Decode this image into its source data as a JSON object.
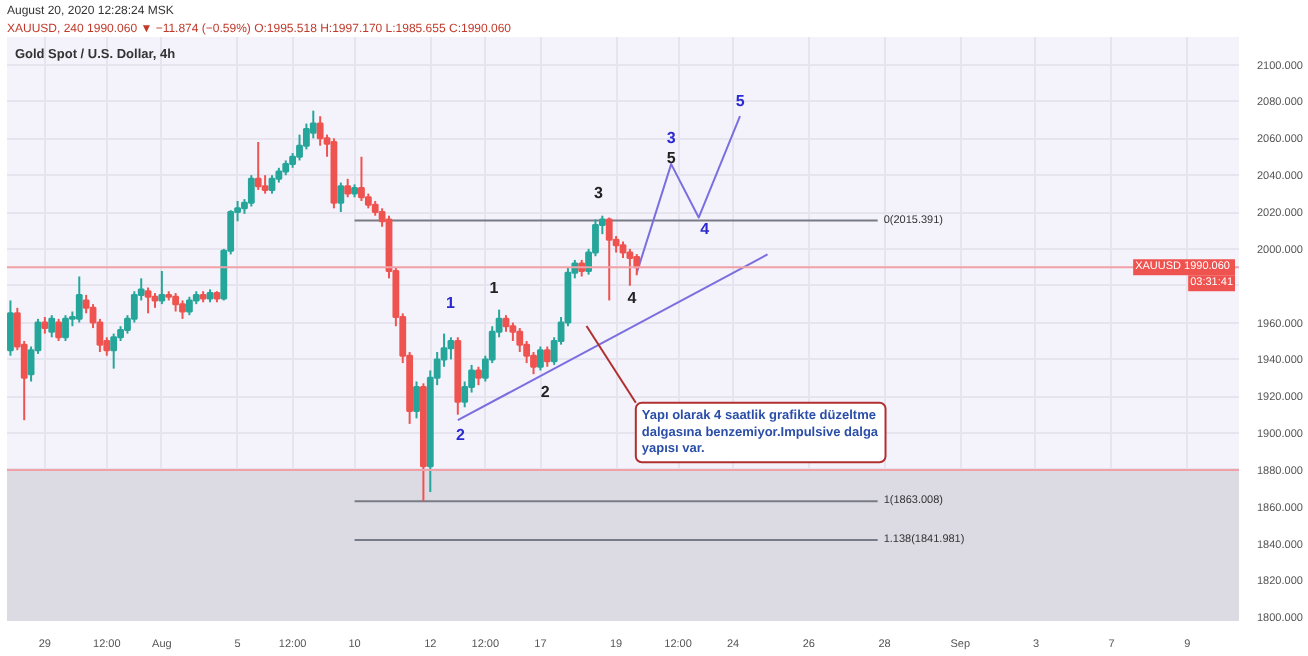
{
  "chart_data": {
    "type": "candlestick",
    "title": "Gold Spot / U.S. Dollar, 4h",
    "subtitle": "XAUUSD, 240  1990.060 ▼ −11.874 (−0.59%)  O:1995.518  H:1997.170  L:1985.655  C:1990.060",
    "categories": [
      null,
      null,
      null,
      null,
      null,
      "29",
      null,
      null,
      null,
      null,
      null,
      null,
      null,
      null,
      "12:00",
      null,
      null,
      null,
      null,
      null,
      null,
      null,
      "Aug",
      null,
      null,
      null,
      null,
      null,
      null,
      null,
      null,
      null,
      null,
      "5",
      null,
      null,
      null,
      null,
      null,
      null,
      null,
      "12:00",
      null,
      null,
      null,
      null,
      null,
      null,
      null,
      null,
      "10",
      null,
      null,
      null,
      null,
      null,
      null,
      null,
      null,
      null,
      null,
      "12",
      null,
      null,
      null,
      null,
      null,
      null,
      null,
      "12:00",
      null,
      null,
      null,
      null,
      null,
      null,
      null,
      "17",
      null,
      null,
      null,
      null,
      null,
      null,
      null,
      null,
      null,
      null,
      "19",
      null,
      null,
      null,
      null,
      null,
      null,
      null,
      null,
      "12:00",
      null,
      null,
      null,
      null,
      null,
      null,
      null,
      "24",
      null,
      null,
      null,
      null,
      null,
      null,
      null,
      null,
      null,
      null,
      "26",
      null,
      null,
      null,
      null,
      null,
      null,
      null,
      null,
      null,
      null,
      "28",
      null,
      null,
      null,
      null,
      null,
      null,
      null,
      null,
      null,
      null,
      "Sep",
      null,
      null,
      null,
      null,
      null,
      null,
      null,
      null,
      null,
      null,
      "3",
      null,
      null,
      null,
      null,
      null,
      null,
      null,
      null,
      null,
      null,
      "7",
      null,
      null,
      null,
      null,
      null,
      null,
      null,
      null,
      null,
      null,
      "9",
      null,
      null,
      null,
      null,
      null,
      null,
      null
    ],
    "ohlc": [
      [
        1945,
        1972,
        1942,
        1965
      ],
      [
        1965,
        1968,
        1945,
        1947
      ],
      [
        1948,
        1950,
        1907,
        1930
      ],
      [
        1932,
        1947,
        1928,
        1945
      ],
      [
        1945,
        1962,
        1943,
        1960
      ],
      [
        1960,
        1963,
        1954,
        1957
      ],
      [
        1955,
        1964,
        1952,
        1962
      ],
      [
        1960,
        1962,
        1950,
        1952
      ],
      [
        1952,
        1964,
        1950,
        1962
      ],
      [
        1962,
        1966,
        1958,
        1963
      ],
      [
        1962,
        1985,
        1960,
        1975
      ],
      [
        1972,
        1975,
        1965,
        1968
      ],
      [
        1968,
        1970,
        1957,
        1960
      ],
      [
        1960,
        1962,
        1944,
        1948
      ],
      [
        1950,
        1952,
        1942,
        1945
      ],
      [
        1945,
        1954,
        1935,
        1952
      ],
      [
        1952,
        1958,
        1950,
        1956
      ],
      [
        1956,
        1964,
        1954,
        1962
      ],
      [
        1962,
        1977,
        1960,
        1975
      ],
      [
        1975,
        1984,
        1972,
        1978
      ],
      [
        1977,
        1979,
        1965,
        1974
      ],
      [
        1974,
        1976,
        1968,
        1972
      ],
      [
        1972,
        1988,
        1970,
        1975
      ],
      [
        1975,
        1977,
        1972,
        1974
      ],
      [
        1974,
        1976,
        1966,
        1970
      ],
      [
        1970,
        1972,
        1962,
        1966
      ],
      [
        1966,
        1974,
        1964,
        1972
      ],
      [
        1972,
        1977,
        1970,
        1975
      ],
      [
        1975,
        1977,
        1971,
        1973
      ],
      [
        1973,
        1978,
        1971,
        1976
      ],
      [
        1976,
        1977,
        1971,
        1973
      ],
      [
        1973,
        2000,
        1972,
        1999
      ],
      [
        1999,
        2021,
        1997,
        2020
      ],
      [
        2020,
        2026,
        2015,
        2022
      ],
      [
        2022,
        2027,
        2019,
        2025
      ],
      [
        2025,
        2040,
        2023,
        2038
      ],
      [
        2038,
        2058,
        2032,
        2034
      ],
      [
        2034,
        2040,
        2030,
        2032
      ],
      [
        2032,
        2040,
        2030,
        2038
      ],
      [
        2038,
        2044,
        2036,
        2042
      ],
      [
        2042,
        2048,
        2040,
        2046
      ],
      [
        2046,
        2052,
        2044,
        2050
      ],
      [
        2050,
        2062,
        2048,
        2056
      ],
      [
        2056,
        2068,
        2054,
        2065
      ],
      [
        2063,
        2075,
        2060,
        2068
      ],
      [
        2068,
        2072,
        2056,
        2060
      ],
      [
        2060,
        2062,
        2050,
        2057
      ],
      [
        2058,
        2060,
        2022,
        2025
      ],
      [
        2025,
        2036,
        2020,
        2034
      ],
      [
        2034,
        2038,
        2028,
        2030
      ],
      [
        2030,
        2035,
        2028,
        2033
      ],
      [
        2033,
        2050,
        2026,
        2028
      ],
      [
        2028,
        2030,
        2022,
        2024
      ],
      [
        2024,
        2026,
        2018,
        2020
      ],
      [
        2020,
        2022,
        2012,
        2015
      ],
      [
        2016,
        2018,
        1984,
        1988
      ],
      [
        1988,
        1990,
        1958,
        1963
      ],
      [
        1963,
        1965,
        1938,
        1942
      ],
      [
        1942,
        1944,
        1905,
        1912
      ],
      [
        1912,
        1928,
        1908,
        1925
      ],
      [
        1925,
        1927,
        1863,
        1882
      ],
      [
        1882,
        1934,
        1868,
        1930
      ],
      [
        1930,
        1944,
        1926,
        1940
      ],
      [
        1940,
        1954,
        1936,
        1946
      ],
      [
        1946,
        1952,
        1940,
        1950
      ],
      [
        1950,
        1952,
        1910,
        1917
      ],
      [
        1917,
        1928,
        1914,
        1925
      ],
      [
        1925,
        1937,
        1922,
        1934
      ],
      [
        1934,
        1936,
        1926,
        1930
      ],
      [
        1930,
        1942,
        1928,
        1940
      ],
      [
        1940,
        1958,
        1938,
        1955
      ],
      [
        1955,
        1967,
        1952,
        1962
      ],
      [
        1962,
        1964,
        1955,
        1958
      ],
      [
        1958,
        1960,
        1950,
        1955
      ],
      [
        1955,
        1957,
        1944,
        1948
      ],
      [
        1948,
        1950,
        1938,
        1942
      ],
      [
        1942,
        1944,
        1932,
        1936
      ],
      [
        1936,
        1947,
        1934,
        1945
      ],
      [
        1945,
        1947,
        1936,
        1939
      ],
      [
        1939,
        1952,
        1937,
        1950
      ],
      [
        1950,
        1963,
        1948,
        1960
      ],
      [
        1960,
        1990,
        1958,
        1987
      ],
      [
        1987,
        1994,
        1984,
        1992
      ],
      [
        1992,
        1994,
        1985,
        1988
      ],
      [
        1988,
        2000,
        1986,
        1998
      ],
      [
        1998,
        2016,
        1996,
        2013
      ],
      [
        2013,
        2018,
        2008,
        2016
      ],
      [
        2016,
        2017,
        1972,
        2005
      ],
      [
        2005,
        2007,
        1998,
        2002
      ],
      [
        2002,
        2004,
        1995,
        1998
      ],
      [
        1998,
        2000,
        1980,
        1995
      ],
      [
        1995.518,
        1997.17,
        1985.655,
        1990.06
      ],
      null,
      null,
      null,
      null,
      null,
      null,
      null,
      null,
      null,
      null,
      null,
      null,
      null,
      null,
      null,
      null,
      null,
      null,
      null,
      null,
      null,
      null,
      null,
      null,
      null,
      null,
      null,
      null,
      null,
      null,
      null,
      null,
      null,
      null,
      null,
      null,
      null,
      null,
      null,
      null,
      null,
      null,
      null,
      null,
      null,
      null,
      null,
      null,
      null,
      null,
      null,
      null,
      null,
      null,
      null,
      null,
      null,
      null,
      null,
      null,
      null,
      null,
      null,
      null,
      null,
      null,
      null,
      null,
      null,
      null,
      null,
      null,
      null,
      null,
      null,
      null,
      null,
      null,
      null,
      null,
      null,
      null,
      null,
      null,
      null,
      null,
      null
    ],
    "colors": [
      "#26a69a",
      "#ef5350",
      "#ef5350",
      "#26a69a",
      "#26a69a",
      "#ef5350",
      "#26a69a",
      "#ef5350",
      "#26a69a",
      "#26a69a",
      "#26a69a",
      "#ef5350",
      "#ef5350",
      "#ef5350",
      "#ef5350",
      "#26a69a",
      "#26a69a",
      "#26a69a",
      "#26a69a",
      "#26a69a",
      "#ef5350",
      "#ef5350",
      "#26a69a",
      "#ef5350",
      "#ef5350",
      "#ef5350",
      "#26a69a",
      "#26a69a",
      "#ef5350",
      "#26a69a",
      "#ef5350",
      "#26a69a",
      "#26a69a",
      "#26a69a",
      "#26a69a",
      "#26a69a",
      "#ef5350",
      "#ef5350",
      "#26a69a",
      "#26a69a",
      "#26a69a",
      "#26a69a",
      "#26a69a",
      "#26a69a",
      "#26a69a",
      "#ef5350",
      "#ef5350",
      "#ef5350",
      "#26a69a",
      "#ef5350",
      "#26a69a",
      "#ef5350",
      "#ef5350",
      "#ef5350",
      "#ef5350",
      "#ef5350",
      "#ef5350",
      "#ef5350",
      "#ef5350",
      "#26a69a",
      "#ef5350",
      "#26a69a",
      "#26a69a",
      "#26a69a",
      "#26a69a",
      "#ef5350",
      "#26a69a",
      "#26a69a",
      "#ef5350",
      "#26a69a",
      "#26a69a",
      "#26a69a",
      "#ef5350",
      "#ef5350",
      "#ef5350",
      "#ef5350",
      "#ef5350",
      "#26a69a",
      "#ef5350",
      "#26a69a",
      "#26a69a",
      "#26a69a",
      "#26a69a",
      "#ef5350",
      "#26a69a",
      "#26a69a",
      "#26a69a",
      "#ef5350",
      "#ef5350",
      "#ef5350",
      "#ef5350",
      "#ef5350",
      null,
      null,
      null,
      null,
      null,
      null,
      null,
      null,
      null,
      null,
      null,
      null,
      null,
      null,
      null,
      null,
      null,
      null,
      null,
      null,
      null,
      null,
      null,
      null,
      null,
      null,
      null,
      null,
      null,
      null,
      null,
      null,
      null,
      null,
      null,
      null,
      null,
      null,
      null,
      null,
      null,
      null,
      null,
      null,
      null,
      null,
      null,
      null,
      null,
      null,
      null,
      null,
      null,
      null,
      null,
      null,
      null,
      null,
      null,
      null,
      null,
      null,
      null,
      null,
      null,
      null,
      null,
      null,
      null,
      null,
      null,
      null,
      null,
      null,
      null,
      null,
      null,
      null,
      null,
      null,
      null,
      null,
      null,
      null,
      null,
      null,
      null
    ],
    "series": [
      {
        "type": "line",
        "name": "0(2015.391)",
        "color": "#787b86",
        "values": [
          null,
          null,
          null,
          null,
          null,
          null,
          null,
          null,
          null,
          null,
          null,
          null,
          null,
          null,
          null,
          null,
          null,
          null,
          null,
          null,
          null,
          null,
          null,
          null,
          null,
          null,
          null,
          null,
          null,
          null,
          null,
          null,
          null,
          null,
          null,
          null,
          null,
          null,
          null,
          null,
          null,
          null,
          null,
          null,
          null,
          null,
          null,
          null,
          null,
          null,
          2015.391,
          null,
          null,
          null,
          null,
          null,
          null,
          null,
          null,
          null,
          null,
          null,
          null,
          null,
          null,
          null,
          null,
          null,
          null,
          null,
          null,
          null,
          null,
          null,
          null,
          null,
          null,
          null,
          null,
          null,
          null,
          null,
          null,
          null,
          null,
          null,
          null,
          null,
          null,
          null,
          null,
          null,
          null,
          null,
          null,
          null,
          null,
          null,
          null,
          null,
          null,
          null,
          null,
          null,
          null,
          null,
          null,
          null,
          null,
          null,
          null,
          null,
          null,
          null,
          null,
          null,
          null,
          null,
          null,
          null,
          null,
          null,
          null,
          null,
          null,
          null,
          2015.391,
          null,
          null,
          null,
          null,
          null,
          null,
          null,
          null,
          null,
          null,
          null,
          null,
          null,
          null,
          null,
          null,
          null,
          null,
          null,
          null,
          null,
          null,
          null,
          null,
          null,
          null,
          null,
          null,
          null,
          null,
          null,
          null,
          null,
          null,
          null,
          null,
          null,
          null,
          null,
          null,
          null,
          null,
          null,
          null,
          null,
          null,
          null,
          null,
          null,
          null,
          null,
          null
        ]
      },
      {
        "type": "line",
        "name": "1(1863.008)",
        "color": "#787b86",
        "values": [
          null,
          null,
          null,
          null,
          null,
          null,
          null,
          null,
          null,
          null,
          null,
          null,
          null,
          null,
          null,
          null,
          null,
          null,
          null,
          null,
          null,
          null,
          null,
          null,
          null,
          null,
          null,
          null,
          null,
          null,
          null,
          null,
          null,
          null,
          null,
          null,
          null,
          null,
          null,
          null,
          null,
          null,
          null,
          null,
          null,
          null,
          null,
          null,
          null,
          null,
          1863.008,
          null,
          null,
          null,
          null,
          null,
          null,
          null,
          null,
          null,
          null,
          null,
          null,
          null,
          null,
          null,
          null,
          null,
          null,
          null,
          null,
          null,
          null,
          null,
          null,
          null,
          null,
          null,
          null,
          null,
          null,
          null,
          null,
          null,
          null,
          null,
          null,
          null,
          null,
          null,
          null,
          null,
          null,
          null,
          null,
          null,
          null,
          null,
          null,
          null,
          null,
          null,
          null,
          null,
          null,
          null,
          null,
          null,
          null,
          null,
          null,
          null,
          null,
          null,
          null,
          null,
          null,
          null,
          null,
          null,
          null,
          null,
          null,
          null,
          null,
          null,
          1863.008,
          null,
          null,
          null,
          null,
          null,
          null,
          null,
          null,
          null,
          null,
          null,
          null,
          null,
          null,
          null,
          null,
          null,
          null,
          null,
          null,
          null,
          null,
          null,
          null,
          null,
          null,
          null,
          null,
          null,
          null,
          null,
          null,
          null,
          null,
          null,
          null,
          null,
          null,
          null,
          null,
          null,
          null,
          null,
          null,
          null,
          null,
          null,
          null,
          null,
          null,
          null,
          null
        ]
      },
      {
        "type": "line",
        "name": "1.138(1841.981)",
        "color": "#787b86",
        "values": [
          null,
          null,
          null,
          null,
          null,
          null,
          null,
          null,
          null,
          null,
          null,
          null,
          null,
          null,
          null,
          null,
          null,
          null,
          null,
          null,
          null,
          null,
          null,
          null,
          null,
          null,
          null,
          null,
          null,
          null,
          null,
          null,
          null,
          null,
          null,
          null,
          null,
          null,
          null,
          null,
          null,
          null,
          null,
          null,
          null,
          null,
          null,
          null,
          null,
          null,
          1841.981,
          null,
          null,
          null,
          null,
          null,
          null,
          null,
          null,
          null,
          null,
          null,
          null,
          null,
          null,
          null,
          null,
          null,
          null,
          null,
          null,
          null,
          null,
          null,
          null,
          null,
          null,
          null,
          null,
          null,
          null,
          null,
          null,
          null,
          null,
          null,
          null,
          null,
          null,
          null,
          null,
          null,
          null,
          null,
          null,
          null,
          null,
          null,
          null,
          null,
          null,
          null,
          null,
          null,
          null,
          null,
          null,
          null,
          null,
          null,
          null,
          null,
          null,
          null,
          null,
          null,
          null,
          null,
          null,
          null,
          null,
          null,
          null,
          null,
          null,
          null,
          1841.981,
          null,
          null,
          null,
          null,
          null,
          null,
          null,
          null,
          null,
          null,
          null,
          null,
          null,
          null,
          null,
          null,
          null,
          null,
          null,
          null,
          null,
          null,
          null,
          null,
          null,
          null,
          null,
          null,
          null,
          null,
          null,
          null,
          null,
          null,
          null,
          null,
          null,
          null,
          null,
          null,
          null,
          null,
          null,
          null,
          null,
          null,
          null,
          null,
          null,
          null,
          null,
          null
        ]
      },
      {
        "type": "line",
        "color": "#7b6fe0",
        "values": [
          null,
          null,
          null,
          null,
          null,
          null,
          null,
          null,
          null,
          null,
          null,
          null,
          null,
          null,
          null,
          null,
          null,
          null,
          null,
          null,
          null,
          null,
          null,
          null,
          null,
          null,
          null,
          null,
          null,
          null,
          null,
          null,
          null,
          null,
          null,
          null,
          null,
          null,
          null,
          null,
          null,
          null,
          null,
          null,
          null,
          null,
          null,
          null,
          null,
          null,
          null,
          null,
          null,
          null,
          null,
          null,
          null,
          null,
          null,
          null,
          null,
          null,
          null,
          null,
          null,
          null,
          null,
          null,
          null,
          null,
          null,
          null,
          null,
          null,
          null,
          null,
          null,
          null,
          null,
          null,
          null,
          null,
          null,
          null,
          null,
          null,
          null,
          null,
          null,
          null,
          null,
          1987,
          null,
          null,
          null,
          null,
          2046,
          null,
          null,
          null,
          2017,
          null,
          null,
          null,
          null,
          null,
          2072,
          null,
          null,
          null,
          null,
          null,
          null,
          null,
          null,
          null,
          null,
          null,
          null,
          null,
          null,
          null,
          null,
          null,
          null,
          null,
          null,
          null,
          null,
          null,
          null,
          null,
          null,
          null,
          null,
          null,
          null,
          null,
          null,
          null,
          null,
          null,
          null,
          null,
          null,
          null,
          null,
          null,
          null,
          null,
          null,
          null,
          null,
          null,
          null,
          null,
          null,
          null,
          null,
          null,
          null,
          null,
          null,
          null,
          null,
          null,
          null,
          null,
          null,
          null,
          null,
          null,
          null,
          null,
          null,
          null,
          null,
          null,
          null
        ]
      },
      {
        "type": "line",
        "color": "#7b6fe0",
        "values": [
          null,
          null,
          null,
          null,
          null,
          null,
          null,
          null,
          null,
          null,
          null,
          null,
          null,
          null,
          null,
          null,
          null,
          null,
          null,
          null,
          null,
          null,
          null,
          null,
          null,
          null,
          null,
          null,
          null,
          null,
          null,
          null,
          null,
          null,
          null,
          null,
          null,
          null,
          null,
          null,
          null,
          null,
          null,
          null,
          null,
          null,
          null,
          null,
          null,
          null,
          null,
          null,
          null,
          null,
          null,
          null,
          null,
          null,
          null,
          null,
          null,
          null,
          null,
          null,
          null,
          1907,
          null,
          null,
          null,
          null,
          null,
          null,
          null,
          null,
          null,
          null,
          null,
          null,
          null,
          null,
          null,
          null,
          null,
          null,
          null,
          null,
          null,
          null,
          null,
          null,
          null,
          null,
          null,
          null,
          null,
          null,
          null,
          null,
          null,
          null,
          null,
          null,
          null,
          null,
          null,
          null,
          null,
          null,
          null,
          null,
          1997,
          null,
          null,
          null,
          null,
          null,
          null,
          null,
          null,
          null,
          null,
          null,
          null,
          null,
          null,
          null,
          null,
          null,
          null,
          null,
          null,
          null,
          null,
          null,
          null,
          null,
          null,
          null,
          null,
          null,
          null,
          null,
          null,
          null,
          null,
          null,
          null,
          null,
          null,
          null,
          null,
          null,
          null,
          null,
          null,
          null,
          null,
          null,
          null,
          null,
          null,
          null,
          null,
          null,
          null,
          null,
          null,
          null,
          null,
          null,
          null,
          null,
          null,
          null,
          null,
          null,
          null,
          null,
          null
        ]
      }
    ],
    "ylim": [
      1798,
      2115
    ],
    "yticks": [
      {
        "value": 1800,
        "label": "1800.000"
      },
      {
        "value": 1820,
        "label": "1820.000"
      },
      {
        "value": 1840,
        "label": "1840.000"
      },
      {
        "value": 1860,
        "label": "1860.000"
      },
      {
        "value": 1880,
        "label": "1880.000"
      },
      {
        "value": 1900,
        "label": "1900.000"
      },
      {
        "value": 1920,
        "label": "1920.000"
      },
      {
        "value": 1940,
        "label": "1940.000"
      },
      {
        "value": 1960,
        "label": "1960.000"
      },
      {
        "value": 1980,
        "label": null
      },
      {
        "value": 2000,
        "label": "2000.000"
      },
      {
        "value": 2020,
        "label": "2020.000"
      },
      {
        "value": 2040,
        "label": "2040.000"
      },
      {
        "value": 2060,
        "label": "2060.000"
      },
      {
        "value": 2080,
        "label": "2080.000"
      },
      {
        "value": 2100,
        "label": "2100.000"
      }
    ],
    "grid": true,
    "bands": [
      {
        "axis": "y",
        "from": 1798,
        "to": 1880,
        "color": "#dcdbe4"
      }
    ],
    "ref_lines": [
      {
        "axis": "y",
        "value": 1880,
        "color": "#f0a0a6"
      },
      {
        "axis": "y",
        "value": 1990.06,
        "label": "XAUUSD  1990.060",
        "color": "#f0a0a6"
      }
    ],
    "annotations": [
      "August 20, 2020 12:28:24 MSK",
      "Yapı olarak 4 saatlik grafikte  düzeltme dalgasına benzemiyor.Impulsive dalga yapısı var.",
      "03:31:41",
      "1",
      "2",
      "1",
      "2",
      "3",
      "4",
      "5",
      "3",
      "4",
      {
        "text": "5",
        "y": 2072
      }
    ]
  }
}
